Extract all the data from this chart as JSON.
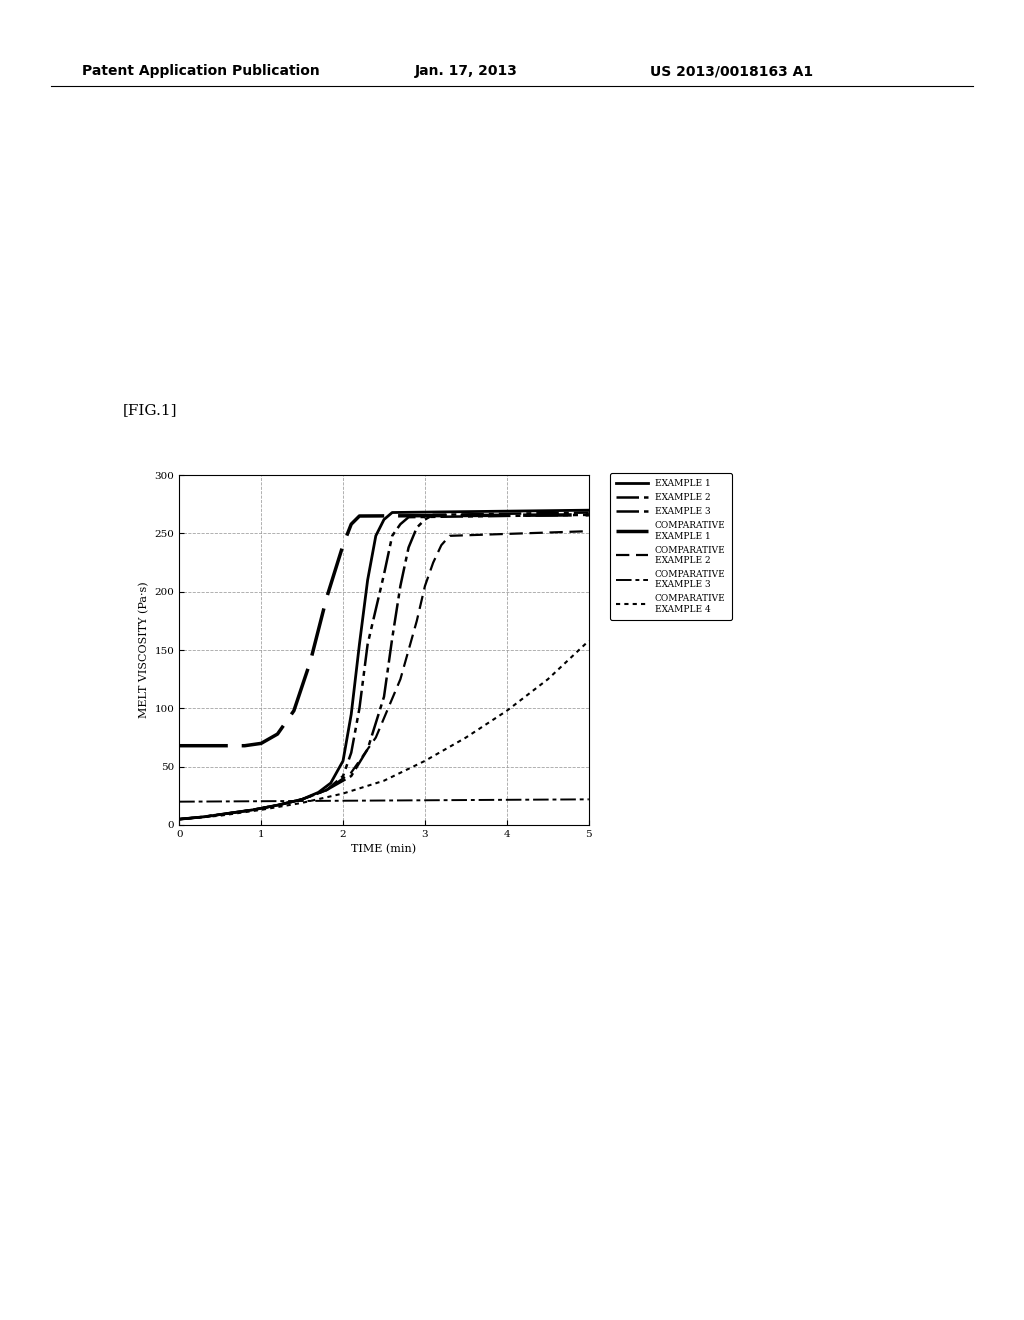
{
  "header_left": "Patent Application Publication",
  "header_mid": "Jan. 17, 2013",
  "header_right": "US 2013/0018163 A1",
  "fig_label": "[FIG.1]",
  "xlabel": "TIME (min)",
  "ylabel": "MELT VISCOSITY (Pa·s)",
  "xlim": [
    0,
    5
  ],
  "ylim": [
    0,
    300
  ],
  "xticks": [
    0,
    1,
    2,
    3,
    4,
    5
  ],
  "yticks": [
    0,
    50,
    100,
    150,
    200,
    250,
    300
  ],
  "series": [
    {
      "name": "EXAMPLE 1",
      "style_index": 0,
      "x": [
        0,
        0.3,
        0.6,
        0.9,
        1.2,
        1.5,
        1.7,
        1.85,
        2.0,
        2.1,
        2.2,
        2.3,
        2.4,
        2.5,
        2.6,
        5.0
      ],
      "y": [
        5,
        7,
        10,
        13,
        17,
        22,
        28,
        36,
        55,
        95,
        155,
        210,
        248,
        262,
        268,
        270
      ]
    },
    {
      "name": "EXAMPLE 2",
      "style_index": 1,
      "x": [
        0,
        0.3,
        0.6,
        0.9,
        1.2,
        1.5,
        1.8,
        2.1,
        2.3,
        2.5,
        2.6,
        2.7,
        2.8,
        2.9,
        3.0,
        3.1,
        5.0
      ],
      "y": [
        5,
        7,
        10,
        13,
        17,
        22,
        30,
        42,
        65,
        110,
        160,
        205,
        238,
        255,
        262,
        266,
        268
      ]
    },
    {
      "name": "EXAMPLE 3",
      "style_index": 2,
      "x": [
        0,
        0.3,
        0.6,
        0.9,
        1.2,
        1.5,
        1.8,
        2.0,
        2.1,
        2.2,
        2.3,
        2.5,
        2.6,
        2.7,
        2.8,
        5.0
      ],
      "y": [
        5,
        7,
        10,
        13,
        17,
        22,
        30,
        42,
        62,
        100,
        155,
        215,
        248,
        258,
        264,
        266
      ]
    },
    {
      "name": "COMPARATIVE\nEXAMPLE 1",
      "style_index": 3,
      "x": [
        0,
        0.2,
        0.5,
        0.8,
        1.0,
        1.2,
        1.4,
        1.6,
        1.8,
        2.0,
        2.1,
        2.2,
        5.0
      ],
      "y": [
        68,
        68,
        68,
        68,
        70,
        78,
        98,
        140,
        195,
        240,
        258,
        265,
        266
      ]
    },
    {
      "name": "COMPARATIVE\nEXAMPLE 2",
      "style_index": 4,
      "x": [
        0,
        0.3,
        0.6,
        0.9,
        1.2,
        1.5,
        1.8,
        2.1,
        2.4,
        2.7,
        2.9,
        3.0,
        3.1,
        3.2,
        3.3,
        5.0
      ],
      "y": [
        5,
        7,
        10,
        13,
        17,
        22,
        30,
        45,
        75,
        125,
        175,
        205,
        225,
        240,
        248,
        252
      ]
    },
    {
      "name": "COMPARATIVE\nEXAMPLE 3",
      "style_index": 5,
      "x": [
        0,
        5.0
      ],
      "y": [
        20,
        22
      ]
    },
    {
      "name": "COMPARATIVE\nEXAMPLE 4",
      "style_index": 6,
      "x": [
        0,
        0.5,
        1.0,
        1.5,
        2.0,
        2.5,
        3.0,
        3.5,
        4.0,
        4.5,
        5.0
      ],
      "y": [
        5,
        8,
        13,
        19,
        27,
        38,
        55,
        75,
        98,
        125,
        158
      ]
    }
  ]
}
